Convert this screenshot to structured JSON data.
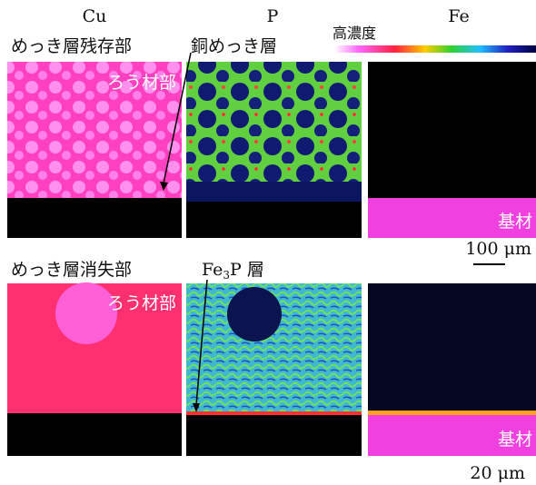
{
  "columns": [
    "Cu",
    "P",
    "Fe"
  ],
  "colorbar_label": "高濃度",
  "row1": {
    "left_label": "めっき層残存部",
    "center_label": "銅めっき層",
    "filler_label": "ろう材部",
    "base_label": "基材",
    "scale": "100 μm"
  },
  "row2": {
    "left_label": "めっき層消失部",
    "center_label": {
      "prefix": "Fe",
      "sub": "3",
      "suffix": "P 層"
    },
    "filler_label": "ろう材部",
    "base_label": "基材",
    "scale": "20 μm"
  }
}
